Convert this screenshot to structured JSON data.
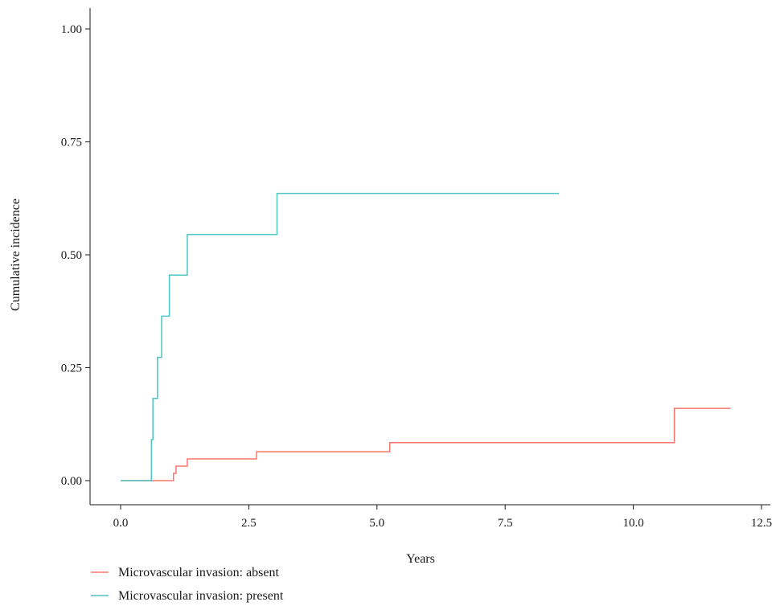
{
  "chart_data": {
    "type": "line",
    "step": true,
    "xlabel": "Years",
    "ylabel": "Cumulative incidence",
    "xlim": [
      0,
      12.5
    ],
    "ylim": [
      0,
      1.0
    ],
    "x_ticks": [
      "0.0",
      "2.5",
      "5.0",
      "7.5",
      "10.0",
      "12.5"
    ],
    "y_ticks": [
      "0.00",
      "0.25",
      "0.50",
      "0.75",
      "1.00"
    ],
    "grid": false,
    "legend_position": "bottom-left",
    "series": [
      {
        "name": "Microvascular invasion: absent",
        "color": "#f8766d",
        "points": [
          [
            0,
            0
          ],
          [
            1.03,
            0
          ],
          [
            1.03,
            0.016
          ],
          [
            1.08,
            0.016
          ],
          [
            1.08,
            0.032
          ],
          [
            1.3,
            0.032
          ],
          [
            1.3,
            0.048
          ],
          [
            2.65,
            0.048
          ],
          [
            2.65,
            0.064
          ],
          [
            5.25,
            0.064
          ],
          [
            5.25,
            0.084
          ],
          [
            10.8,
            0.084
          ],
          [
            10.8,
            0.16
          ],
          [
            11.9,
            0.16
          ]
        ]
      },
      {
        "name": "Microvascular invasion: present",
        "color": "#4fc4c4",
        "points": [
          [
            0,
            0
          ],
          [
            0.6,
            0
          ],
          [
            0.6,
            0.091
          ],
          [
            0.63,
            0.091
          ],
          [
            0.63,
            0.182
          ],
          [
            0.72,
            0.182
          ],
          [
            0.72,
            0.273
          ],
          [
            0.8,
            0.273
          ],
          [
            0.8,
            0.364
          ],
          [
            0.95,
            0.364
          ],
          [
            0.95,
            0.455
          ],
          [
            1.3,
            0.455
          ],
          [
            1.3,
            0.545
          ],
          [
            3.05,
            0.545
          ],
          [
            3.05,
            0.636
          ],
          [
            8.55,
            0.636
          ]
        ]
      }
    ]
  }
}
